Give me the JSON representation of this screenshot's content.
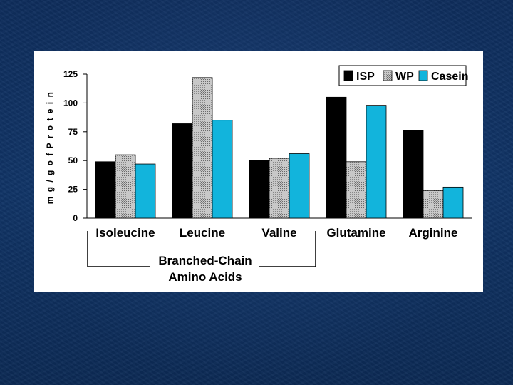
{
  "chart_data": {
    "type": "bar",
    "title": "",
    "xlabel": "",
    "ylabel": "m g / g  o f  P r o t e i n",
    "ylim": [
      0,
      125
    ],
    "yticks": [
      0,
      25,
      50,
      75,
      100,
      125
    ],
    "categories": [
      "Isoleucine",
      "Leucine",
      "Valine",
      "Glutamine",
      "Arginine"
    ],
    "series": [
      {
        "name": "ISP",
        "color": "#000000",
        "pattern": "solid",
        "values": [
          49,
          82,
          50,
          105,
          76
        ]
      },
      {
        "name": "WP",
        "color": "#b8b8b8",
        "pattern": "crosshatch",
        "values": [
          55,
          122,
          52,
          49,
          24
        ]
      },
      {
        "name": "Casein",
        "color": "#12b4dc",
        "pattern": "solid",
        "values": [
          47,
          85,
          56,
          98,
          27
        ]
      }
    ],
    "legend_position": "top-right",
    "grid": false,
    "group_annotation": {
      "line1": "Branched-Chain",
      "line2": "Amino Acids",
      "covers": [
        "Isoleucine",
        "Leucine",
        "Valine"
      ]
    }
  }
}
